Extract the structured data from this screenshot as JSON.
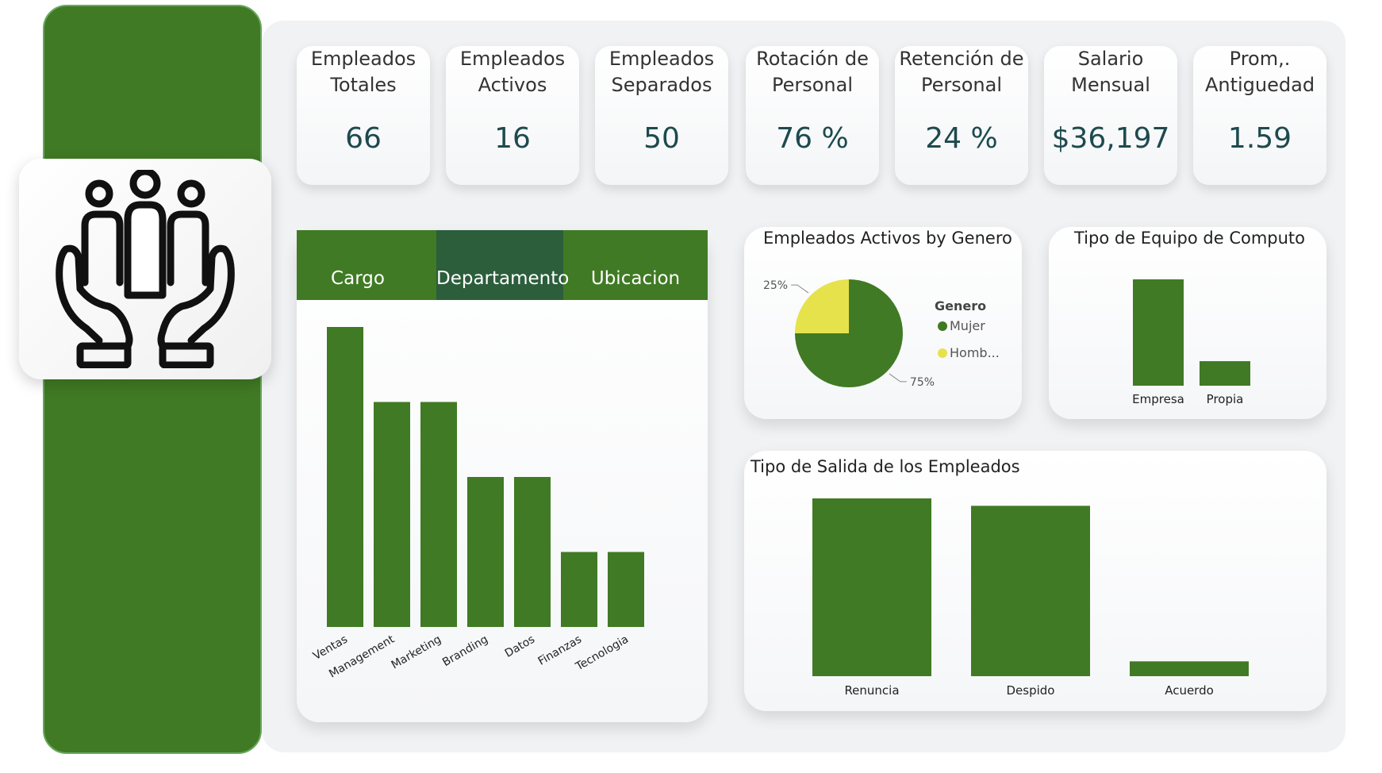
{
  "kpis": [
    {
      "title_line1": "Empleados",
      "title_line2": "Totales",
      "value": "66"
    },
    {
      "title_line1": "Empleados",
      "title_line2": "Activos",
      "value": "16"
    },
    {
      "title_line1": "Empleados",
      "title_line2": "Separados",
      "value": "50"
    },
    {
      "title_line1": "Rotación de",
      "title_line2": "Personal",
      "value": "76 %"
    },
    {
      "title_line1": "Retención de",
      "title_line2": "Personal",
      "value": "24 %"
    },
    {
      "title_line1": "Salario",
      "title_line2": "Mensual",
      "value": "$36,197"
    },
    {
      "title_line1": "Prom,.",
      "title_line2": "Antiguedad",
      "value": "1.59"
    }
  ],
  "tabs": [
    {
      "label": "Cargo",
      "active": false
    },
    {
      "label": "Departamento",
      "active": true
    },
    {
      "label": "Ubicacion",
      "active": false
    }
  ],
  "colors": {
    "green": "#407a24",
    "yellow": "#e6e24c",
    "active_tab": "#2c5e3c"
  },
  "logo": {
    "icon": "people-in-hands-icon"
  },
  "chart_data": [
    {
      "type": "bar",
      "title": "",
      "categories": [
        "Ventas",
        "Management",
        "Marketing",
        "Branding",
        "Datos",
        "Finanzas",
        "Tecnologia"
      ],
      "values": [
        4,
        3,
        3,
        2,
        2,
        1,
        1
      ],
      "ylim": [
        0,
        4
      ],
      "grid": false
    },
    {
      "type": "pie",
      "title": "Empleados Activos by Genero",
      "legend_title": "Genero",
      "legend_position": "right",
      "labels": [
        "Mujer",
        "Homb..."
      ],
      "values": [
        75,
        25
      ],
      "percent_labels": [
        "75%",
        "25%"
      ]
    },
    {
      "type": "bar",
      "title": "Tipo de Equipo de Computo",
      "categories": [
        "Empresa",
        "Propia"
      ],
      "values": [
        13,
        3
      ],
      "ylim": [
        0,
        13
      ]
    },
    {
      "type": "bar",
      "title": "Tipo de Salida de los Empleados",
      "categories": [
        "Renuncia",
        "Despido",
        "Acuerdo"
      ],
      "values": [
        24,
        23,
        2
      ],
      "ylim": [
        0,
        24
      ]
    }
  ]
}
